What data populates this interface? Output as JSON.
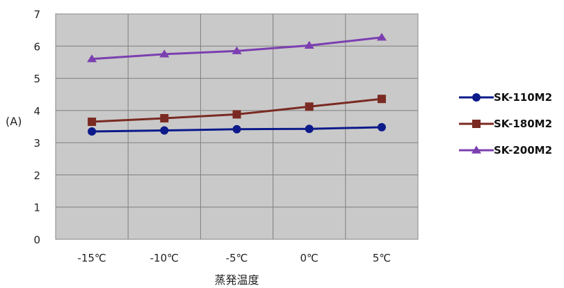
{
  "chart_data": {
    "type": "line",
    "title": "",
    "xlabel": "蒸発温度",
    "ylabel": "(A)",
    "categories": [
      "-15℃",
      "-10℃",
      "-5℃",
      "0℃",
      "5℃"
    ],
    "ylim": [
      0,
      7
    ],
    "yticks": [
      "0",
      "1",
      "2",
      "3",
      "4",
      "5",
      "6",
      "7"
    ],
    "grid": true,
    "legend": "right",
    "series": [
      {
        "name": "SK-110M2",
        "values": [
          3.35,
          3.38,
          3.42,
          3.43,
          3.48
        ],
        "color": "#0c1a8a",
        "marker": "circle"
      },
      {
        "name": "SK-180M2",
        "values": [
          3.65,
          3.76,
          3.88,
          4.12,
          4.36
        ],
        "color": "#7a2a22",
        "marker": "square"
      },
      {
        "name": "SK-200M2",
        "values": [
          5.6,
          5.75,
          5.85,
          6.02,
          6.27
        ],
        "color": "#7b3fb0",
        "marker": "triangle"
      }
    ]
  }
}
